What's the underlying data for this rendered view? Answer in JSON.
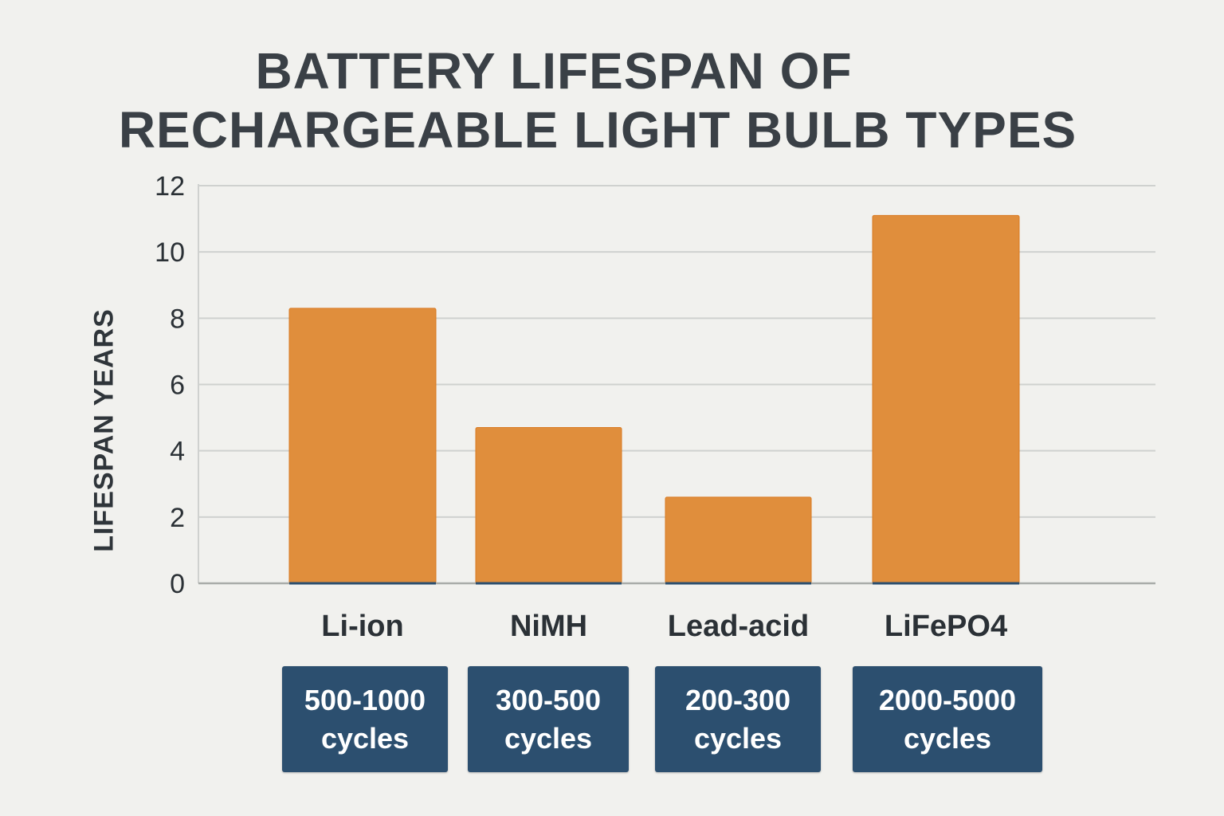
{
  "chart_data": {
    "type": "bar",
    "title": "BATTERY LIFESPAN OF RECHARGEABLE LIGHT BULB TYPES",
    "title_lines": [
      "BATTERY LIFESPAN OF",
      "RECHARGEABLE LIGHT BULB TYPES"
    ],
    "xlabel": "",
    "ylabel": "LIFESPAN YEARS",
    "categories": [
      "Li-ion",
      "NiMH",
      "Lead-acid",
      "LiFePO4"
    ],
    "values": [
      8.3,
      4.7,
      2.6,
      11.1
    ],
    "ylim": [
      0,
      12
    ],
    "yticks": [
      0,
      2,
      4,
      6,
      8,
      10,
      12
    ],
    "grid": true,
    "legend": "none",
    "annotations": [
      {
        "category": "Li-ion",
        "range": "500-1000",
        "unit": "cycles"
      },
      {
        "category": "NiMH",
        "range": "300-500",
        "unit": "cycles"
      },
      {
        "category": "Lead-acid",
        "range": "200-300",
        "unit": "cycles"
      },
      {
        "category": "LiFePO4",
        "range": "2000-5000",
        "unit": "cycles"
      }
    ],
    "colors": {
      "bar": "#e08e3c",
      "bar_edge": "#d97a22",
      "cycle_box": "#2c4f6f",
      "text": "#2b3136",
      "grid": "#cfd1cf",
      "background": "#f1f1ee"
    }
  }
}
